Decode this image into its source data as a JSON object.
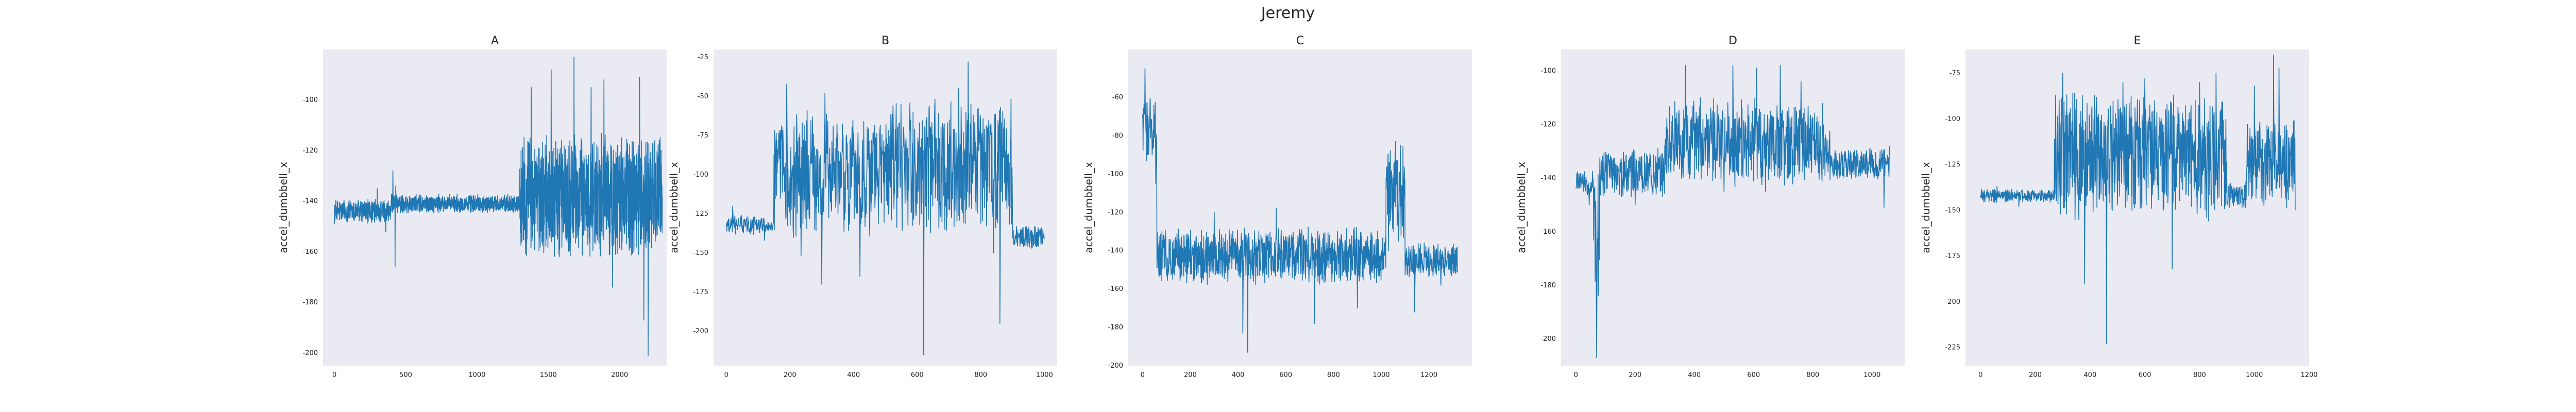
{
  "figure": {
    "title": "Jeremy"
  },
  "colors": {
    "panel_bg": "#eaeaf2",
    "line": "#1f77b4"
  },
  "chart_data": [
    {
      "type": "line",
      "title": "A",
      "ylabel": "accel_dumbbell_x",
      "xlim": [
        -80,
        2330
      ],
      "ylim": [
        -205,
        -80
      ],
      "xticks": [
        0,
        500,
        1000,
        1500,
        2000
      ],
      "yticks": [
        -200,
        -180,
        -160,
        -140,
        -120,
        -100
      ],
      "n_points": 2300,
      "grid": false,
      "segments": [
        {
          "x0": 0,
          "x1": 400,
          "center": -144,
          "amp": 4,
          "spikes": [
            [
              300,
              -135
            ],
            [
              360,
              -152
            ]
          ]
        },
        {
          "x0": 400,
          "x1": 1300,
          "center": -141,
          "amp": 3,
          "spikes": [
            [
              425,
              -166
            ],
            [
              430,
              -134
            ],
            [
              410,
              -128
            ],
            [
              1200,
              -144
            ]
          ]
        },
        {
          "x0": 1300,
          "x1": 2300,
          "center": -138,
          "amp": 20,
          "spikes": [
            [
              1380,
              -95
            ],
            [
              1520,
              -88
            ],
            [
              1680,
              -83
            ],
            [
              1800,
              -95
            ],
            [
              1890,
              -92
            ],
            [
              1950,
              -174
            ],
            [
              2140,
              -91
            ],
            [
              2170,
              -187
            ],
            [
              2200,
              -201
            ]
          ]
        }
      ]
    },
    {
      "type": "line",
      "title": "B",
      "ylabel": "accel_dumbbell_x",
      "xlim": [
        -40,
        1040
      ],
      "ylim": [
        -222,
        -20
      ],
      "xticks": [
        0,
        200,
        400,
        600,
        800,
        1000
      ],
      "yticks": [
        -200,
        -175,
        -150,
        -125,
        -100,
        -75,
        -50,
        -25
      ],
      "n_points": 1000,
      "grid": false,
      "segments": [
        {
          "x0": 0,
          "x1": 150,
          "center": -132,
          "amp": 5,
          "spikes": [
            [
              20,
              -120
            ],
            [
              120,
              -142
            ]
          ]
        },
        {
          "x0": 150,
          "x1": 520,
          "center": -100,
          "amp": 32,
          "spikes": [
            [
              190,
              -42
            ],
            [
              310,
              -48
            ],
            [
              235,
              -152
            ],
            [
              300,
              -170
            ],
            [
              420,
              -165
            ]
          ]
        },
        {
          "x0": 520,
          "x1": 900,
          "center": -95,
          "amp": 35,
          "spikes": [
            [
              620,
              -215
            ],
            [
              760,
              -28
            ],
            [
              730,
              -45
            ],
            [
              860,
              -195
            ],
            [
              840,
              -150
            ]
          ]
        },
        {
          "x0": 900,
          "x1": 1000,
          "center": -140,
          "amp": 6,
          "spikes": []
        }
      ]
    },
    {
      "type": "line",
      "title": "C",
      "ylabel": "accel_dumbbell_x",
      "xlim": [
        -60,
        1380
      ],
      "ylim": [
        -200,
        -35
      ],
      "xticks": [
        0,
        200,
        400,
        600,
        800,
        1000,
        1200
      ],
      "yticks": [
        -200,
        -180,
        -160,
        -140,
        -120,
        -100,
        -80,
        -60
      ],
      "n_points": 1320,
      "grid": false,
      "segments": [
        {
          "x0": 0,
          "x1": 60,
          "center": -75,
          "amp": 15,
          "spikes": [
            [
              10,
              -45
            ],
            [
              40,
              -90
            ],
            [
              55,
              -105
            ]
          ]
        },
        {
          "x0": 60,
          "x1": 1020,
          "center": -143,
          "amp": 12,
          "spikes": [
            [
              420,
              -183
            ],
            [
              440,
              -193
            ],
            [
              300,
              -120
            ],
            [
              560,
              -118
            ],
            [
              720,
              -178
            ],
            [
              900,
              -170
            ]
          ]
        },
        {
          "x0": 1020,
          "x1": 1100,
          "center": -112,
          "amp": 22,
          "spikes": [
            [
              1060,
              -83
            ],
            [
              1080,
              -85
            ],
            [
              1030,
              -140
            ]
          ]
        },
        {
          "x0": 1100,
          "x1": 1320,
          "center": -145,
          "amp": 7,
          "spikes": [
            [
              1140,
              -172
            ],
            [
              1250,
              -158
            ]
          ]
        }
      ]
    },
    {
      "type": "line",
      "title": "D",
      "ylabel": "accel_dumbbell_x",
      "xlim": [
        -50,
        1110
      ],
      "ylim": [
        -210,
        -92
      ],
      "xticks": [
        0,
        200,
        400,
        600,
        800,
        1000
      ],
      "yticks": [
        -200,
        -180,
        -160,
        -140,
        -120,
        -100
      ],
      "n_points": 1060,
      "grid": false,
      "segments": [
        {
          "x0": 0,
          "x1": 60,
          "center": -142,
          "amp": 4,
          "spikes": [
            [
              45,
              -150
            ]
          ]
        },
        {
          "x0": 60,
          "x1": 80,
          "center": -160,
          "amp": 20,
          "spikes": [
            [
              70,
              -207
            ]
          ]
        },
        {
          "x0": 80,
          "x1": 300,
          "center": -138,
          "amp": 8,
          "spikes": [
            [
              200,
              -150
            ],
            [
              280,
              -135
            ]
          ]
        },
        {
          "x0": 300,
          "x1": 860,
          "center": -127,
          "amp": 13,
          "spikes": [
            [
              370,
              -98
            ],
            [
              420,
              -110
            ],
            [
              530,
              -98
            ],
            [
              610,
              -99
            ],
            [
              690,
              -98
            ],
            [
              760,
              -104
            ],
            [
              500,
              -145
            ],
            [
              640,
              -145
            ]
          ]
        },
        {
          "x0": 860,
          "x1": 1060,
          "center": -135,
          "amp": 5,
          "spikes": [
            [
              1040,
              -151
            ],
            [
              1060,
              -128
            ]
          ]
        }
      ]
    },
    {
      "type": "line",
      "title": "E",
      "ylabel": "accel_dumbbell_x",
      "xlim": [
        -55,
        1200
      ],
      "ylim": [
        -235,
        -62
      ],
      "xticks": [
        0,
        200,
        400,
        600,
        800,
        1000,
        1200
      ],
      "yticks": [
        -225,
        -200,
        -175,
        -150,
        -125,
        -100,
        -75
      ],
      "n_points": 1150,
      "grid": false,
      "segments": [
        {
          "x0": 0,
          "x1": 270,
          "center": -142,
          "amp": 3,
          "spikes": [
            [
              60,
              -137
            ],
            [
              140,
              -148
            ]
          ]
        },
        {
          "x0": 270,
          "x1": 900,
          "center": -120,
          "amp": 28,
          "spikes": [
            [
              300,
              -75
            ],
            [
              380,
              -190
            ],
            [
              460,
              -223
            ],
            [
              520,
              -80
            ],
            [
              600,
              -78
            ],
            [
              700,
              -182
            ],
            [
              800,
              -80
            ],
            [
              860,
              -75
            ]
          ]
        },
        {
          "x0": 900,
          "x1": 970,
          "center": -142,
          "amp": 6,
          "spikes": []
        },
        {
          "x0": 970,
          "x1": 1150,
          "center": -125,
          "amp": 20,
          "spikes": [
            [
              1000,
              -82
            ],
            [
              1070,
              -65
            ],
            [
              1090,
              -72
            ],
            [
              1150,
              -150
            ]
          ]
        }
      ]
    }
  ]
}
